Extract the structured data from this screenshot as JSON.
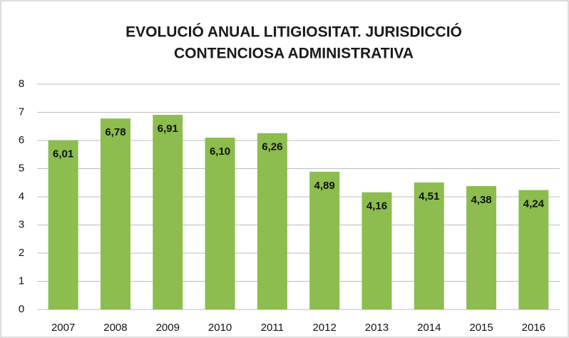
{
  "chart_data": {
    "type": "bar",
    "title": [
      "EVOLUCIÓ ANUAL LITIGIOSITAT. JURISDICCIÓ",
      "CONTENCIOSA ADMINISTRATIVA"
    ],
    "categories": [
      "2007",
      "2008",
      "2009",
      "2010",
      "2011",
      "2012",
      "2013",
      "2014",
      "2015",
      "2016"
    ],
    "values": [
      6.01,
      6.78,
      6.91,
      6.1,
      6.26,
      4.89,
      4.16,
      4.51,
      4.38,
      4.24
    ],
    "value_labels": [
      "6,01",
      "6,78",
      "6,91",
      "6,10",
      "6,26",
      "4,89",
      "4,16",
      "4,51",
      "4,38",
      "4,24"
    ],
    "color": "#8cbd4e",
    "ylim": [
      0,
      8
    ],
    "yticks": [
      0,
      1,
      2,
      3,
      4,
      5,
      6,
      7,
      8
    ],
    "grid": true
  }
}
